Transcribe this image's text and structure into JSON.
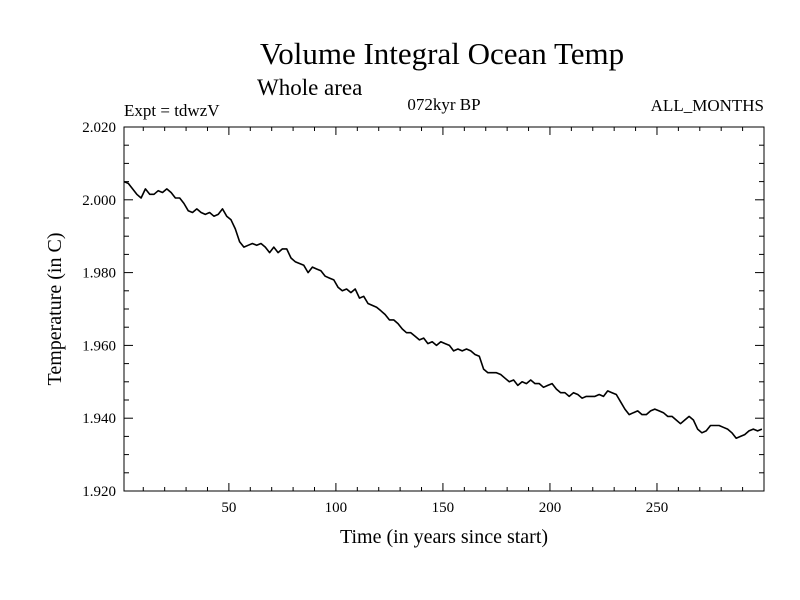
{
  "chart_data": {
    "type": "line",
    "title": "Volume Integral Ocean Temp",
    "subtitle": "Whole area",
    "annotations": {
      "left": "Expt = tdwzV",
      "center": "072kyr BP",
      "right": "ALL_MONTHS"
    },
    "xlabel": "Time (in years since start)",
    "ylabel": "Temperature (in C)",
    "xlim": [
      1,
      300
    ],
    "ylim": [
      1.92,
      2.02
    ],
    "x_major_ticks": [
      50,
      100,
      150,
      200,
      250
    ],
    "x_tick_labels": [
      "50",
      "100",
      "150",
      "200",
      "250"
    ],
    "y_major_ticks": [
      1.92,
      1.94,
      1.96,
      1.98,
      2.0,
      2.02
    ],
    "y_tick_labels": [
      "1.920",
      "1.940",
      "1.960",
      "1.980",
      "2.000",
      "2.020"
    ],
    "grid": false,
    "series": [
      {
        "x": [
          1,
          3,
          5,
          7,
          9,
          11,
          13,
          15,
          17,
          19,
          21,
          23,
          25,
          27,
          29,
          31,
          33,
          35,
          37,
          39,
          41,
          43,
          45,
          47,
          49,
          51,
          53,
          55,
          57,
          59,
          61,
          63,
          65,
          67,
          69,
          71,
          73,
          75,
          77,
          79,
          81,
          83,
          85,
          87,
          89,
          91,
          93,
          95,
          97,
          99,
          101,
          103,
          105,
          107,
          109,
          111,
          113,
          115,
          117,
          119,
          121,
          123,
          125,
          127,
          129,
          131,
          133,
          135,
          137,
          139,
          141,
          143,
          145,
          147,
          149,
          151,
          153,
          155,
          157,
          159,
          161,
          163,
          165,
          167,
          169,
          171,
          173,
          175,
          177,
          179,
          181,
          183,
          185,
          187,
          189,
          191,
          193,
          195,
          197,
          199,
          201,
          203,
          205,
          207,
          209,
          211,
          213,
          215,
          217,
          219,
          221,
          223,
          225,
          227,
          229,
          231,
          233,
          235,
          237,
          239,
          241,
          243,
          245,
          247,
          249,
          251,
          253,
          255,
          257,
          259,
          261,
          263,
          265,
          267,
          269,
          271,
          273,
          275,
          277,
          279,
          281,
          283,
          285,
          287,
          289,
          291,
          293,
          295,
          297,
          299
        ],
        "values": [
          2.005,
          2.0045,
          2.003,
          2.0015,
          2.0005,
          2.003,
          2.0015,
          2.0015,
          2.0025,
          2.002,
          2.003,
          2.002,
          2.0005,
          2.0005,
          1.999,
          1.997,
          1.9965,
          1.9975,
          1.9965,
          1.996,
          1.9965,
          1.9955,
          1.996,
          1.9975,
          1.9955,
          1.9945,
          1.992,
          1.9885,
          1.987,
          1.9875,
          1.988,
          1.9875,
          1.988,
          1.987,
          1.9855,
          1.987,
          1.9855,
          1.9865,
          1.9865,
          1.984,
          1.983,
          1.9825,
          1.982,
          1.98,
          1.9815,
          1.981,
          1.9805,
          1.979,
          1.9785,
          1.978,
          1.976,
          1.975,
          1.9755,
          1.9745,
          1.9755,
          1.973,
          1.9735,
          1.9715,
          1.971,
          1.9705,
          1.9695,
          1.9685,
          1.967,
          1.967,
          1.966,
          1.9645,
          1.9635,
          1.9635,
          1.9625,
          1.9615,
          1.962,
          1.9605,
          1.961,
          1.96,
          1.961,
          1.9605,
          1.96,
          1.9585,
          1.959,
          1.9585,
          1.959,
          1.9585,
          1.9575,
          1.957,
          1.9535,
          1.9525,
          1.9525,
          1.9525,
          1.952,
          1.951,
          1.95,
          1.9505,
          1.949,
          1.95,
          1.9495,
          1.9505,
          1.9495,
          1.9495,
          1.9485,
          1.949,
          1.9495,
          1.948,
          1.947,
          1.947,
          1.946,
          1.947,
          1.9465,
          1.9455,
          1.946,
          1.946,
          1.946,
          1.9465,
          1.946,
          1.9475,
          1.947,
          1.9465,
          1.9445,
          1.9425,
          1.941,
          1.9415,
          1.942,
          1.941,
          1.941,
          1.942,
          1.9425,
          1.942,
          1.9415,
          1.9405,
          1.9405,
          1.9395,
          1.9385,
          1.9395,
          1.9405,
          1.9395,
          1.937,
          1.936,
          1.9365,
          1.938,
          1.938,
          1.938,
          1.9375,
          1.937,
          1.936,
          1.9345,
          1.935,
          1.9355,
          1.9365,
          1.937,
          1.9365,
          1.937
        ]
      }
    ]
  }
}
